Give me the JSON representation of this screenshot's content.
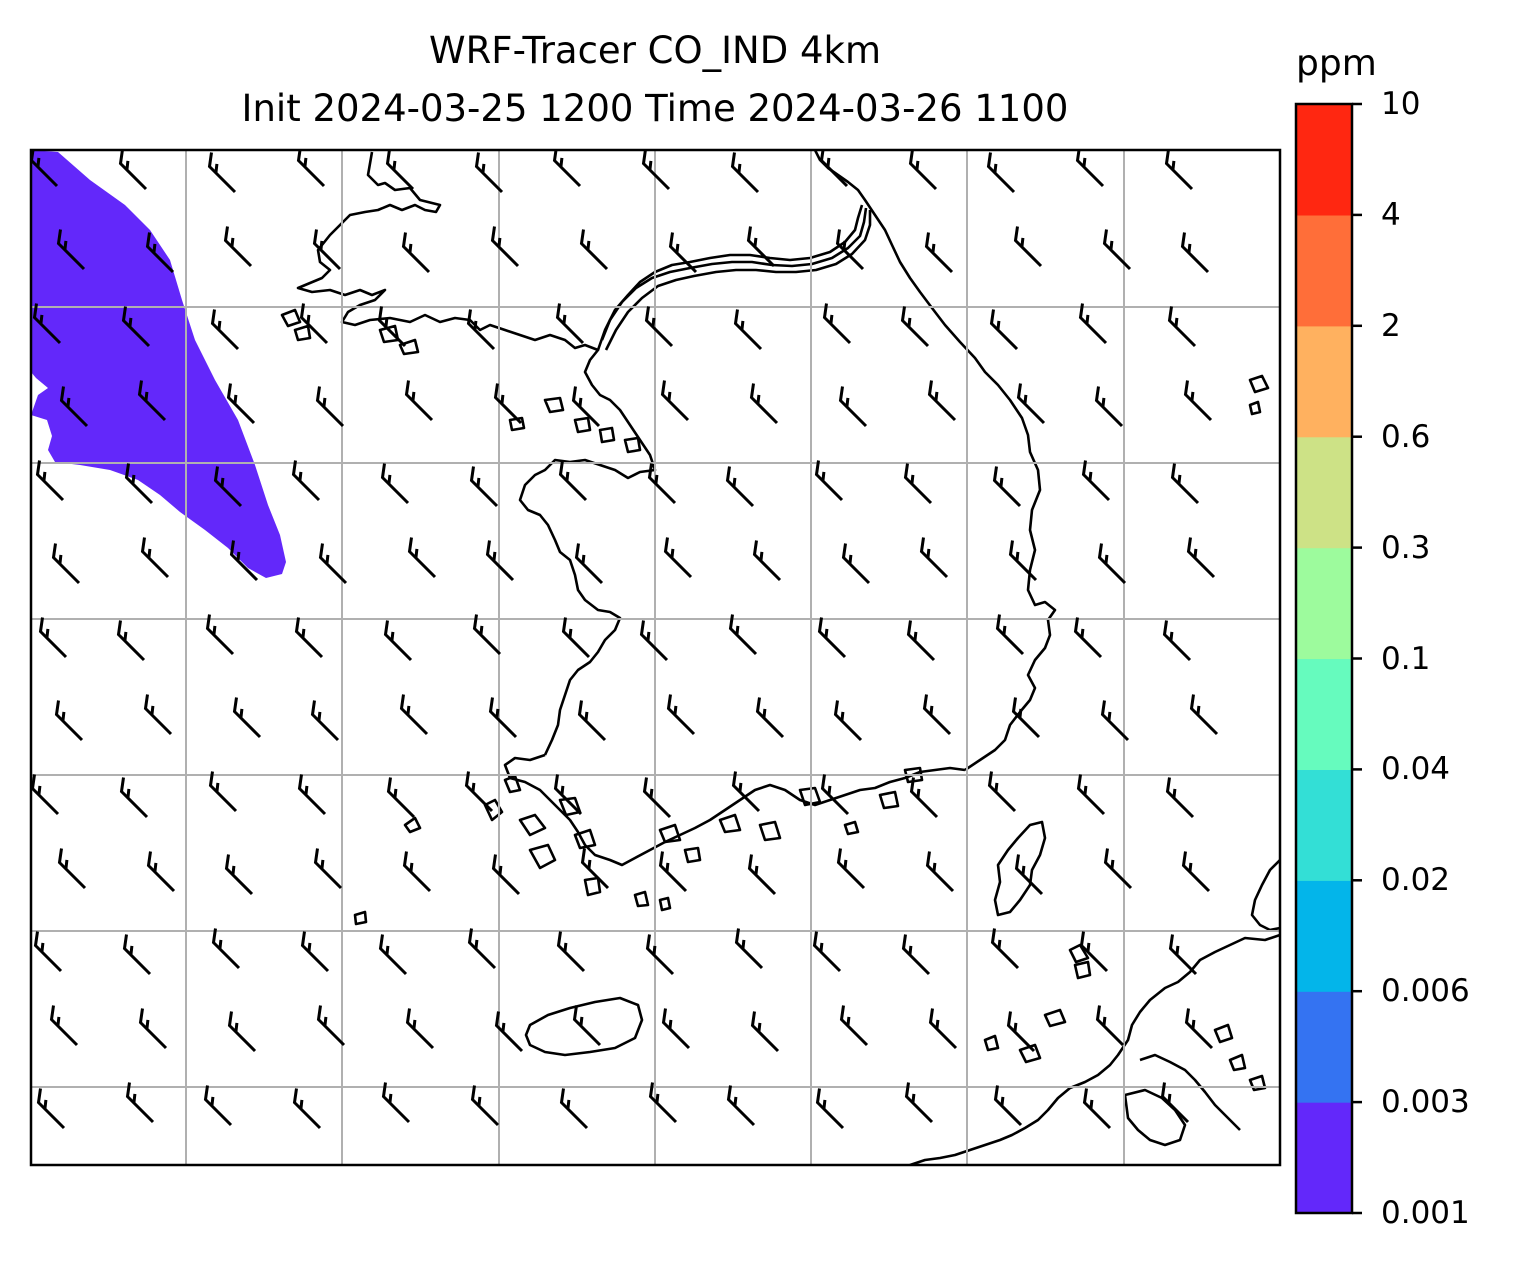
{
  "title": {
    "line1": "WRF-Tracer CO_IND 4km",
    "line2": "Init 2024-03-25 1200 Time 2024-03-26 1100"
  },
  "colorbar": {
    "unit": "ppm",
    "ticks": [
      "0.001",
      "0.003",
      "0.006",
      "0.02",
      "0.04",
      "0.1",
      "0.3",
      "0.6",
      "2",
      "4",
      "10"
    ],
    "colors": [
      "#6328fa",
      "#3473f2",
      "#03b5ea",
      "#33dfd6",
      "#66fbbe",
      "#9dfb9d",
      "#cde286",
      "#ffb15f",
      "#ff6e39",
      "#ff2711"
    ]
  },
  "map": {
    "tracer_fill_color": "#6328fa",
    "coastline_color": "#000000",
    "gridline_color": "#b0b0b0",
    "barb_color": "#000000",
    "wind_direction": "northwesterly"
  }
}
